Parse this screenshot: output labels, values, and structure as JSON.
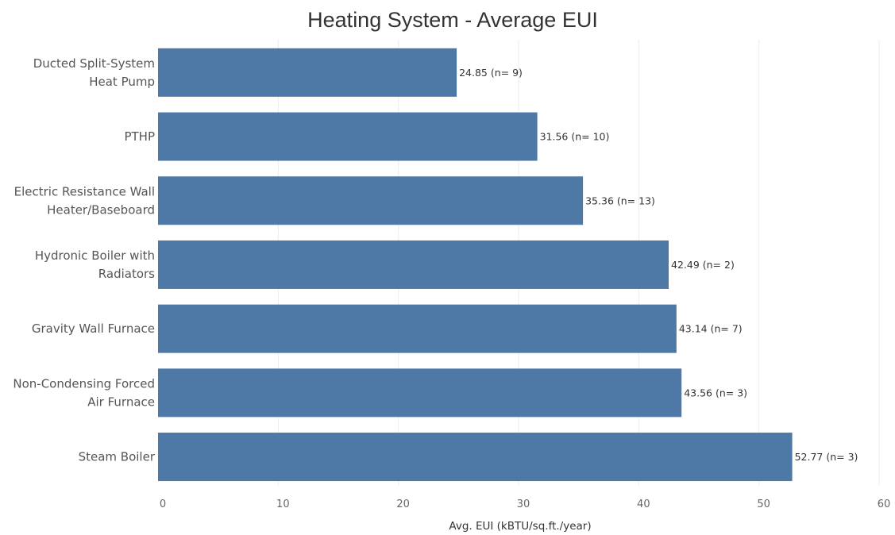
{
  "chart_data": {
    "type": "bar",
    "orientation": "horizontal",
    "title": "Heating System - Average EUI",
    "xlabel": "Avg. EUI (kBTU/sq.ft./year)",
    "ylabel": "",
    "xlim": [
      0,
      60
    ],
    "xticks": [
      0,
      10,
      20,
      30,
      40,
      50,
      60
    ],
    "grid": true,
    "bar_color": "#4e79a7",
    "categories": [
      [
        "Ducted Split-System",
        "Heat Pump"
      ],
      [
        "PTHP"
      ],
      [
        "Electric Resistance Wall",
        "Heater/Baseboard"
      ],
      [
        "Hydronic Boiler with",
        "Radiators"
      ],
      [
        "Gravity Wall Furnace"
      ],
      [
        "Non-Condensing Forced",
        "Air Furnace"
      ],
      [
        "Steam Boiler"
      ]
    ],
    "values": [
      24.85,
      31.56,
      35.36,
      42.49,
      43.14,
      43.56,
      52.77
    ],
    "data_labels": [
      "24.85 (n= 9)",
      "31.56 (n= 10)",
      "35.36 (n= 13)",
      "42.49 (n= 2)",
      "43.14 (n= 7)",
      "43.56 (n= 3)",
      "52.77 (n= 3)"
    ]
  }
}
